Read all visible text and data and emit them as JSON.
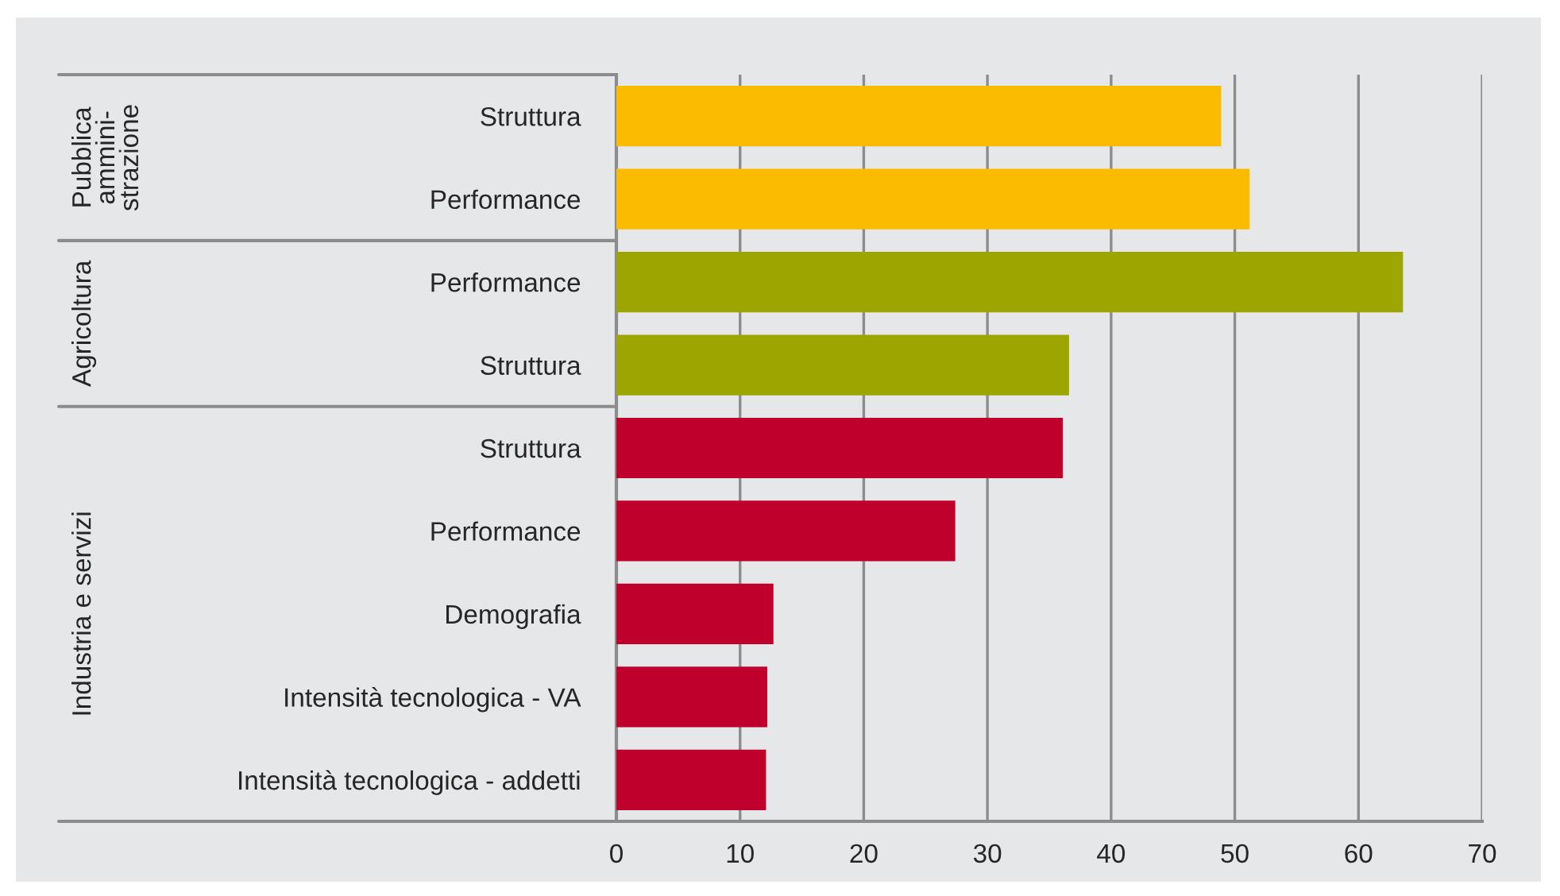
{
  "chart_data": {
    "type": "bar",
    "orientation": "horizontal",
    "categories": [
      "Struttura",
      "Performance",
      "Performance",
      "Struttura",
      "Struttura",
      "Performance",
      "Demografia",
      "Intensità tecnologica - VA",
      "Intensità tecnologica - addetti"
    ],
    "series": [
      {
        "color": "#fbbb00",
        "values": [
          48.9,
          51.2,
          null,
          null,
          null,
          null,
          null,
          null,
          null
        ]
      },
      {
        "color": "#9da600",
        "values": [
          null,
          null,
          63.6,
          36.6,
          null,
          null,
          null,
          null,
          null
        ]
      },
      {
        "color": "#c0002c",
        "values": [
          null,
          null,
          null,
          null,
          36.1,
          27.4,
          12.7,
          12.2,
          12.1
        ]
      }
    ],
    "xlim": [
      0,
      70
    ],
    "xticks": [
      0,
      10,
      20,
      30,
      40,
      50,
      60,
      70
    ],
    "grid": "x",
    "annotations": [
      "Pubblica\nammini-\nstrazione",
      "Agricoltura",
      "Industria e servizi"
    ]
  }
}
